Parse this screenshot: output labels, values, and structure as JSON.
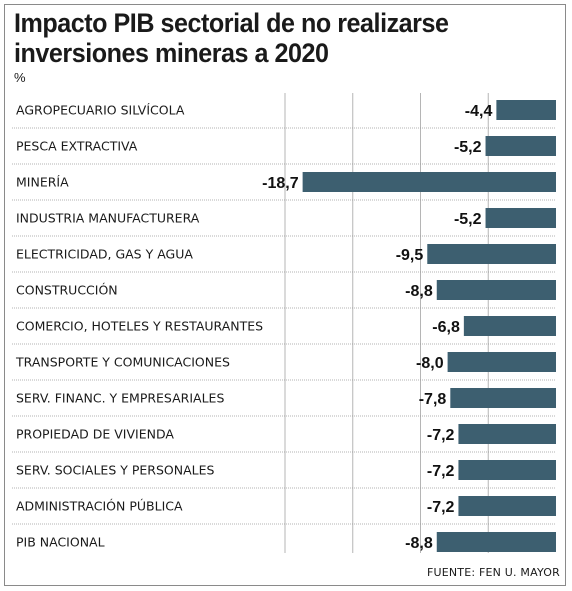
{
  "title": "Impacto PIB sectorial de no realizarse inversiones mineras a 2020",
  "unit": "%",
  "source": "FUENTE: FEN U. MAYOR",
  "colors": {
    "bar": "#3d5f70",
    "grid": "#b5b5b5",
    "divider": "#9a9a9a"
  },
  "chart_data": {
    "type": "bar",
    "orientation": "horizontal",
    "title": "Impacto PIB sectorial de no realizarse inversiones mineras a 2020",
    "ylabel": "%",
    "xlim": [
      -20,
      0
    ],
    "grid": true,
    "categories": [
      "AGROPECUARIO SILVÍCOLA",
      "PESCA EXTRACTIVA",
      "MINERÍA",
      "INDUSTRIA MANUFACTURERA",
      "ELECTRICIDAD, GAS Y AGUA",
      "CONSTRUCCIÓN",
      "COMERCIO, HOTELES Y RESTAURANTES",
      "TRANSPORTE Y COMUNICACIONES",
      "SERV. FINANC. Y EMPRESARIALES",
      "PROPIEDAD DE VIVIENDA",
      "SERV. SOCIALES Y PERSONALES",
      "ADMINISTRACIÓN PÚBLICA",
      "PIB NACIONAL"
    ],
    "values": [
      -4.4,
      -5.2,
      -18.7,
      -5.2,
      -9.5,
      -8.8,
      -6.8,
      -8.0,
      -7.8,
      -7.2,
      -7.2,
      -7.2,
      -8.8
    ],
    "value_labels": [
      "-4,4",
      "-5,2",
      "-18,7",
      "-5,2",
      "-9,5",
      "-8,8",
      "-6,8",
      "-8,0",
      "-7,8",
      "-7,2",
      "-7,2",
      "-7,2",
      "-8,8"
    ]
  }
}
